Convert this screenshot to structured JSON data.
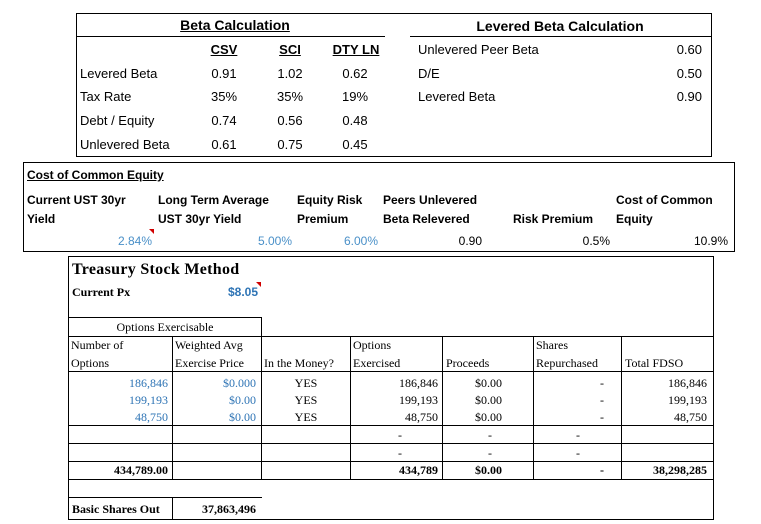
{
  "beta": {
    "title": "Beta Calculation",
    "columns": [
      "CSV",
      "SCI",
      "DTY LN"
    ],
    "rows": [
      {
        "label": "Levered Beta",
        "values": [
          "0.91",
          "1.02",
          "0.62"
        ]
      },
      {
        "label": "Tax Rate",
        "values": [
          "35%",
          "35%",
          "19%"
        ]
      },
      {
        "label": "Debt / Equity",
        "values": [
          "0.74",
          "0.56",
          "0.48"
        ]
      },
      {
        "label": "Unlevered Beta",
        "values": [
          "0.61",
          "0.75",
          "0.45"
        ]
      }
    ]
  },
  "levered": {
    "title": "Levered Beta Calculation",
    "rows": [
      {
        "label": "Unlevered Peer Beta",
        "value": "0.60"
      },
      {
        "label": "D/E",
        "value": "0.50"
      },
      {
        "label": "Levered Beta",
        "value": "0.90"
      }
    ]
  },
  "coe": {
    "title": "Cost of Common Equity",
    "h1": [
      "Current UST 30yr",
      "Long Term Average",
      "Equity Risk",
      "Peers Unlevered",
      "",
      "Cost of Common"
    ],
    "h2": [
      "Yield",
      "UST 30yr Yield",
      "Premium",
      "Beta Relevered",
      "Risk Premium",
      "Equity"
    ],
    "values": [
      "2.84%",
      "5.00%",
      "6.00%",
      "0.90",
      "0.5%",
      "10.9%"
    ]
  },
  "tsm": {
    "title": "Treasury Stock Method",
    "px_label": "Current Px",
    "px_value": "$8.05",
    "group_header": "Options Exercisable",
    "headers_top": [
      "Number of",
      "Weighted Avg",
      "",
      "Options",
      "",
      "Shares",
      ""
    ],
    "headers_bottom": [
      "Options",
      "Exercise Price",
      "In the Money?",
      "Exercised",
      "Proceeds",
      "Repurchased",
      "Total FDSO"
    ],
    "rows": [
      [
        "186,846",
        "$0.000",
        "YES",
        "186,846",
        "$0.00",
        "-",
        "186,846"
      ],
      [
        "199,193",
        "$0.00",
        "YES",
        "199,193",
        "$0.00",
        "-",
        "199,193"
      ],
      [
        "48,750",
        "$0.00",
        "YES",
        "48,750",
        "$0.00",
        "-",
        "48,750"
      ],
      [
        "",
        "",
        "",
        "-",
        "-",
        "-",
        ""
      ],
      [
        "",
        "",
        "",
        "-",
        "-",
        "-",
        ""
      ]
    ],
    "totals": [
      "434,789.00",
      "",
      "",
      "434,789",
      "$0.00",
      "-",
      "38,298,285"
    ],
    "basic_label": "Basic Shares Out",
    "basic_value": "37,863,496"
  }
}
